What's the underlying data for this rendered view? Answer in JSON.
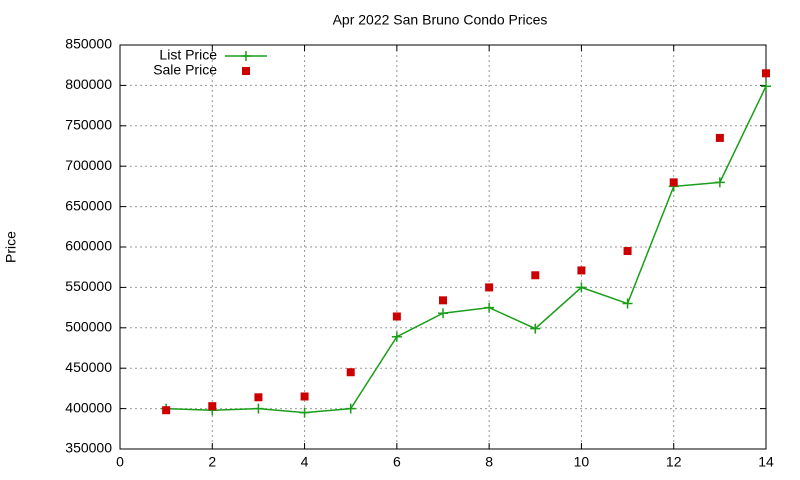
{
  "chart_data": {
    "type": "line",
    "title": "Apr 2022 San Bruno Condo Prices",
    "y_label": "Price",
    "x": [
      1,
      2,
      3,
      4,
      5,
      6,
      7,
      8,
      9,
      10,
      11,
      12,
      13,
      14
    ],
    "series": [
      {
        "name": "List Price",
        "style": "linespoints",
        "color": "#1a9e1a",
        "values": [
          400000,
          398000,
          400000,
          395000,
          400000,
          489000,
          518000,
          525000,
          499000,
          550000,
          530000,
          675000,
          680000,
          799000
        ]
      },
      {
        "name": "Sale Price",
        "style": "points",
        "color": "#cc0000",
        "values": [
          398000,
          403000,
          414000,
          415000,
          445000,
          514000,
          534000,
          550000,
          565000,
          571000,
          595000,
          680000,
          735000,
          815000
        ]
      }
    ],
    "xlim": [
      0,
      14
    ],
    "xticks": [
      0,
      2,
      4,
      6,
      8,
      10,
      12,
      14
    ],
    "ylim": [
      350000,
      850000
    ],
    "yticks": [
      350000,
      400000,
      450000,
      500000,
      550000,
      600000,
      650000,
      700000,
      750000,
      800000,
      850000
    ],
    "grid": true,
    "legend": "top-left"
  }
}
